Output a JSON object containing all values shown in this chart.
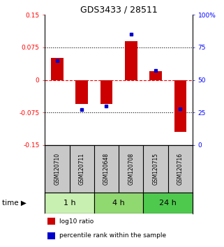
{
  "title": "GDS3433 / 28511",
  "samples": [
    "GSM120710",
    "GSM120711",
    "GSM120648",
    "GSM120708",
    "GSM120715",
    "GSM120716"
  ],
  "log10_ratio": [
    0.05,
    -0.055,
    -0.055,
    0.09,
    0.02,
    -0.12
  ],
  "percentile_rank": [
    65,
    27,
    30,
    85,
    57,
    28
  ],
  "groups": [
    {
      "label": "1 h",
      "indices": [
        0,
        1
      ],
      "color": "#c8f0b0"
    },
    {
      "label": "4 h",
      "indices": [
        2,
        3
      ],
      "color": "#90d870"
    },
    {
      "label": "24 h",
      "indices": [
        4,
        5
      ],
      "color": "#4ec94e"
    }
  ],
  "bar_color": "#cc0000",
  "blue_color": "#0000cc",
  "ylim_left": [
    -0.15,
    0.15
  ],
  "ylim_right": [
    0,
    100
  ],
  "yticks_left": [
    -0.15,
    -0.075,
    0,
    0.075,
    0.15
  ],
  "ytick_labels_left": [
    "-0.15",
    "-0.075",
    "0",
    "0.075",
    "0.15"
  ],
  "yticks_right": [
    0,
    25,
    50,
    75,
    100
  ],
  "ytick_labels_right": [
    "0",
    "25",
    "50",
    "75",
    "100%"
  ],
  "hlines": [
    0.075,
    0,
    -0.075
  ],
  "hline_styles": [
    "dotted",
    "dashed",
    "dotted"
  ],
  "hline_colors": [
    "black",
    "red",
    "black"
  ],
  "bg_color": "#ffffff",
  "plot_bg": "#ffffff",
  "sample_panel_color": "#c8c8c8",
  "time_label": "time",
  "legend_red": "log10 ratio",
  "legend_blue": "percentile rank within the sample"
}
